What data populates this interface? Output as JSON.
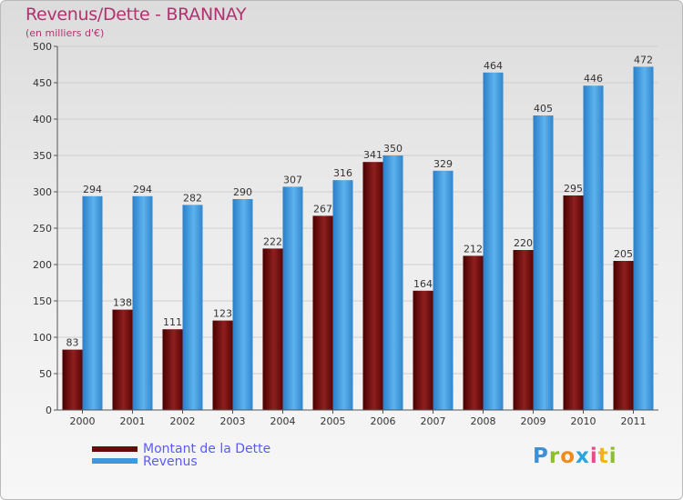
{
  "header": {
    "title": "Revenus/Dette - BRANNAY",
    "subtitle": "(en milliers d'€)"
  },
  "legend": {
    "items": [
      {
        "label": "Montant de la Dette",
        "color": "#7a0f0f"
      },
      {
        "label": "Revenus",
        "color": "#3e98e0"
      }
    ]
  },
  "logo": {
    "letters": [
      "P",
      "r",
      "o",
      "x",
      "i",
      "t",
      "i"
    ],
    "colors": [
      "#3f8fd4",
      "#8bbf2e",
      "#f08a1c",
      "#2aa4dc",
      "#e84c8b",
      "#f0b51c",
      "#8bbf2e"
    ]
  },
  "chart_data": {
    "type": "bar",
    "title": "Revenus/Dette - BRANNAY",
    "subtitle": "(en milliers d'€)",
    "categories": [
      "2000",
      "2001",
      "2002",
      "2003",
      "2004",
      "2005",
      "2006",
      "2007",
      "2008",
      "2009",
      "2010",
      "2011"
    ],
    "series": [
      {
        "name": "Montant de la Dette",
        "values": [
          83,
          138,
          111,
          123,
          222,
          267,
          341,
          164,
          212,
          220,
          295,
          205
        ],
        "color": "#7a0f0f"
      },
      {
        "name": "Revenus",
        "values": [
          294,
          294,
          282,
          290,
          307,
          316,
          350,
          329,
          464,
          405,
          446,
          472
        ],
        "color": "#3e98e0"
      }
    ],
    "ylim": [
      0,
      500
    ],
    "yticks": [
      0,
      50,
      100,
      150,
      200,
      250,
      300,
      350,
      400,
      450,
      500
    ],
    "grid": true,
    "legend_position": "bottom-left"
  }
}
